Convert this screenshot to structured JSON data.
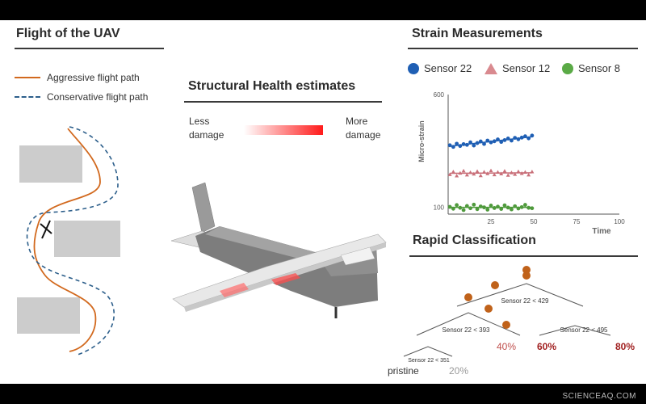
{
  "flight": {
    "title": "Flight of the UAV",
    "legend": {
      "aggressive": "Aggressive flight path",
      "conservative": "Conservative flight path"
    },
    "colors": {
      "aggressive": "#d2691e",
      "conservative": "#2d5f8b",
      "obstacle": "#cccccc"
    }
  },
  "health": {
    "title": "Structural Health estimates",
    "less_label_1": "Less",
    "less_label_2": "damage",
    "more_label_1": "More",
    "more_label_2": "damage",
    "gradient_colors": [
      "#ffffff",
      "#ff1a1a"
    ]
  },
  "strain": {
    "title": "Strain Measurements",
    "legend": [
      {
        "name": "Sensor 22",
        "marker": "circle",
        "color": "#1f5fb4"
      },
      {
        "name": "Sensor 12",
        "marker": "triangle",
        "color": "#d98a8f"
      },
      {
        "name": "Sensor 8",
        "marker": "circle",
        "color": "#5aaa46"
      }
    ]
  },
  "chart_data": {
    "type": "scatter",
    "title": "",
    "xlabel": "Time",
    "ylabel": "Micro-strain",
    "x_ticks": [
      "25",
      "50",
      "75",
      "100"
    ],
    "y_ticks": [
      "100",
      "600"
    ],
    "xlim": [
      0,
      100
    ],
    "ylim": [
      70,
      600
    ],
    "grid": false,
    "series": [
      {
        "name": "Sensor 22",
        "color": "#1f5fb4",
        "x": [
          1,
          3,
          5,
          7,
          9,
          11,
          13,
          15,
          17,
          19,
          21,
          23,
          25,
          27,
          29,
          31,
          33,
          35,
          37,
          39,
          41,
          43,
          45,
          47,
          49
        ],
        "y": [
          375,
          368,
          382,
          372,
          380,
          377,
          388,
          374,
          385,
          392,
          381,
          396,
          388,
          393,
          401,
          390,
          398,
          405,
          396,
          408,
          402,
          409,
          415,
          406,
          418
        ]
      },
      {
        "name": "Sensor 12",
        "color": "#c9707a",
        "x": [
          1,
          3,
          5,
          7,
          9,
          11,
          13,
          15,
          17,
          19,
          21,
          23,
          25,
          27,
          29,
          31,
          33,
          35,
          37,
          39,
          41,
          43,
          45,
          47,
          49
        ],
        "y": [
          246,
          258,
          240,
          252,
          262,
          244,
          255,
          248,
          260,
          241,
          257,
          250,
          263,
          245,
          256,
          249,
          261,
          243,
          254,
          247,
          259,
          251,
          256,
          244,
          258
        ]
      },
      {
        "name": "Sensor 8",
        "color": "#4f9a3c",
        "x": [
          1,
          3,
          5,
          7,
          9,
          11,
          13,
          15,
          17,
          19,
          21,
          23,
          25,
          27,
          29,
          31,
          33,
          35,
          37,
          39,
          41,
          43,
          45,
          47,
          49
        ],
        "y": [
          102,
          94,
          110,
          98,
          88,
          106,
          96,
          112,
          92,
          104,
          100,
          90,
          108,
          97,
          103,
          93,
          109,
          99,
          91,
          105,
          95,
          101,
          111,
          98,
          96
        ]
      }
    ]
  },
  "classification": {
    "title": "Rapid Classification",
    "node_root": "Sensor 22 < 429",
    "node_left": "Sensor 22 < 393",
    "node_right": "Sensor 22 < 495",
    "node_leftleft": "Sensor 22 < 351",
    "leaf_40": "40%",
    "leaf_60": "60%",
    "leaf_80": "80%",
    "leaf_pristine": "pristine",
    "leaf_20": "20%",
    "colors": {
      "node_dot": "#c0621a",
      "leaf_40": "#c0504d",
      "leaf_60_80": "#a01f1f",
      "leaf_20": "#999999"
    }
  },
  "watermark": "SCIENCEAQ.COM"
}
